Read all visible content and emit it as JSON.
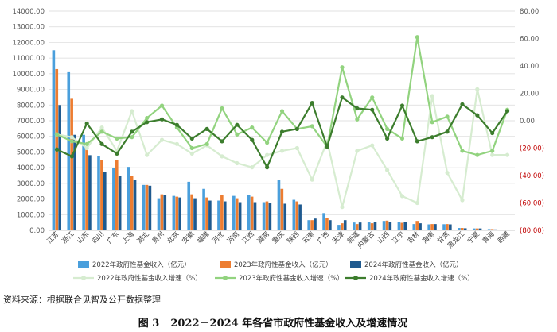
{
  "chart_data": {
    "type": "bar",
    "categories": [
      "江苏",
      "浙江",
      "山东",
      "四川",
      "广东",
      "上海",
      "湖北",
      "贵州",
      "北京",
      "安徽",
      "福建",
      "河北",
      "河南",
      "江西",
      "湖南",
      "重庆",
      "陕西",
      "云南",
      "广西",
      "天津",
      "新疆",
      "内蒙古",
      "山西",
      "辽宁",
      "吉林",
      "海南",
      "甘肃",
      "黑龙江",
      "宁夏",
      "青海",
      "西藏"
    ],
    "y_left": {
      "min": 0,
      "max": 14000,
      "step": 1000,
      "ticks": [
        "0.00",
        "1000.00",
        "2000.00",
        "3000.00",
        "4000.00",
        "5000.00",
        "6000.00",
        "7000.00",
        "8000.00",
        "9000.00",
        "10000.00",
        "11000.00",
        "12000.00",
        "13000.00",
        "14000.00"
      ]
    },
    "y_right": {
      "min": -80,
      "max": 80,
      "step": 20,
      "ticks": [
        "(80.00)",
        "(60.00)",
        "(40.00)",
        "(20.00)",
        "0.00",
        "20.00",
        "40.00",
        "60.00",
        "80.00"
      ]
    },
    "grid": true,
    "legend_position": "bottom",
    "bar_series": [
      {
        "name": "2022年政府性基金收入（亿元）",
        "color": "#4a9fdc",
        "values": [
          11500,
          10100,
          6100,
          4750,
          4000,
          4050,
          2900,
          2050,
          2200,
          3100,
          2650,
          1900,
          2200,
          2250,
          1800,
          3200,
          1950,
          650,
          1100,
          350,
          500,
          550,
          600,
          550,
          400,
          380,
          390,
          150,
          120,
          80,
          40
        ]
      },
      {
        "name": "2023年政府性基金收入（亿元）",
        "color": "#ed7d31",
        "values": [
          10300,
          8400,
          5150,
          4500,
          4500,
          3450,
          2900,
          2300,
          2150,
          2300,
          2100,
          2250,
          2050,
          2150,
          1850,
          2650,
          1850,
          650,
          800,
          450,
          400,
          450,
          620,
          480,
          600,
          400,
          400,
          150,
          120,
          80,
          40
        ]
      },
      {
        "name": "2024年政府性基金收入（亿元）",
        "color": "#1f5a8f",
        "values": [
          8000,
          6100,
          4800,
          3750,
          3500,
          3200,
          2850,
          2250,
          2100,
          2050,
          1900,
          1850,
          1800,
          1800,
          1750,
          1700,
          1650,
          750,
          650,
          650,
          500,
          520,
          550,
          550,
          450,
          400,
          380,
          130,
          120,
          60,
          30
        ]
      }
    ],
    "line_series": [
      {
        "name": "2022年政府性基金收入增速（%）",
        "color": "#d6ecd0",
        "values": [
          -10,
          -12,
          -20,
          -5,
          -22,
          7,
          -25,
          -14,
          -17,
          -24,
          -18,
          -26,
          -31,
          -34,
          -25,
          -22,
          -20,
          -43,
          -15,
          -63,
          -22,
          -18,
          -36,
          -55,
          -60,
          18,
          -38,
          -58,
          23,
          -25,
          -25
        ]
      },
      {
        "name": "2023年政府性基金收入增速（%）",
        "color": "#92d37f",
        "values": [
          -10,
          -15,
          -17,
          -8,
          -13,
          -12,
          2,
          11,
          -5,
          -20,
          -17,
          9,
          -10,
          -5,
          -16,
          7,
          -6,
          -4,
          -19,
          39,
          1,
          17,
          -6,
          -13,
          61,
          -1,
          3,
          -22,
          -25,
          -22,
          8
        ]
      },
      {
        "name": "2024年政府性基金收入增速（%）",
        "color": "#3c7d2d",
        "values": [
          -21,
          -26,
          -2,
          -17,
          -24,
          -8,
          -1,
          1,
          -3,
          -13,
          -6,
          -15,
          -3,
          -14,
          -34,
          -8,
          -6,
          13,
          -19,
          17,
          9,
          8,
          -13,
          11,
          -15,
          -12,
          -8,
          12,
          4,
          -9,
          7
        ]
      }
    ]
  },
  "source_text": "资料来源：根据联合见智及公开数据整理",
  "caption": {
    "label": "图 3",
    "title": "2022－2024 年各省市政府性基金收入及增速情况"
  }
}
